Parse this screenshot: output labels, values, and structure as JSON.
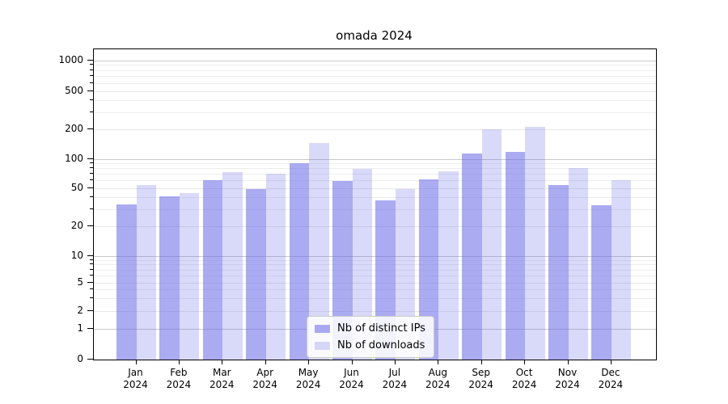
{
  "title": "omada 2024",
  "chart_data": {
    "type": "bar",
    "title": "omada 2024",
    "categories": [
      "Jan 2024",
      "Feb 2024",
      "Mar 2024",
      "Apr 2024",
      "May 2024",
      "Jun 2024",
      "Jul 2024",
      "Aug 2024",
      "Sep 2024",
      "Oct 2024",
      "Nov 2024",
      "Dec 2024"
    ],
    "series": [
      {
        "name": "Nb of distinct IPs",
        "values": [
          34,
          41,
          60,
          49,
          90,
          59,
          37,
          62,
          113,
          118,
          54,
          33
        ]
      },
      {
        "name": "Nb of downloads",
        "values": [
          54,
          44,
          73,
          70,
          145,
          79,
          49,
          75,
          200,
          212,
          81,
          60
        ]
      }
    ],
    "xlabel": "",
    "ylabel": "",
    "yscale": "symlog",
    "ylim": [
      0,
      1300
    ],
    "yticks": [
      0,
      1,
      2,
      5,
      10,
      20,
      50,
      100,
      200,
      500,
      1000
    ],
    "minor_yticks": [
      3,
      4,
      6,
      7,
      8,
      9,
      30,
      40,
      60,
      70,
      80,
      90,
      300,
      400,
      600,
      700,
      800,
      900
    ],
    "grid": true,
    "legend_position": "lower center"
  },
  "legend": {
    "items": [
      {
        "label": "Nb of distinct IPs",
        "swatch": "rgba(102,102,230,0.55)"
      },
      {
        "label": "Nb of downloads",
        "swatch": "rgba(102,102,230,0.25)"
      }
    ]
  },
  "colors": {
    "bar_base": "#6666e6",
    "ips_bar_rendered": "#ababf1",
    "downloads_bar_rendered": "#d9d9f9",
    "grid_decade": "#c9c9c9",
    "grid_minor": "#ededed",
    "spine": "#000000",
    "background": "#ffffff"
  }
}
